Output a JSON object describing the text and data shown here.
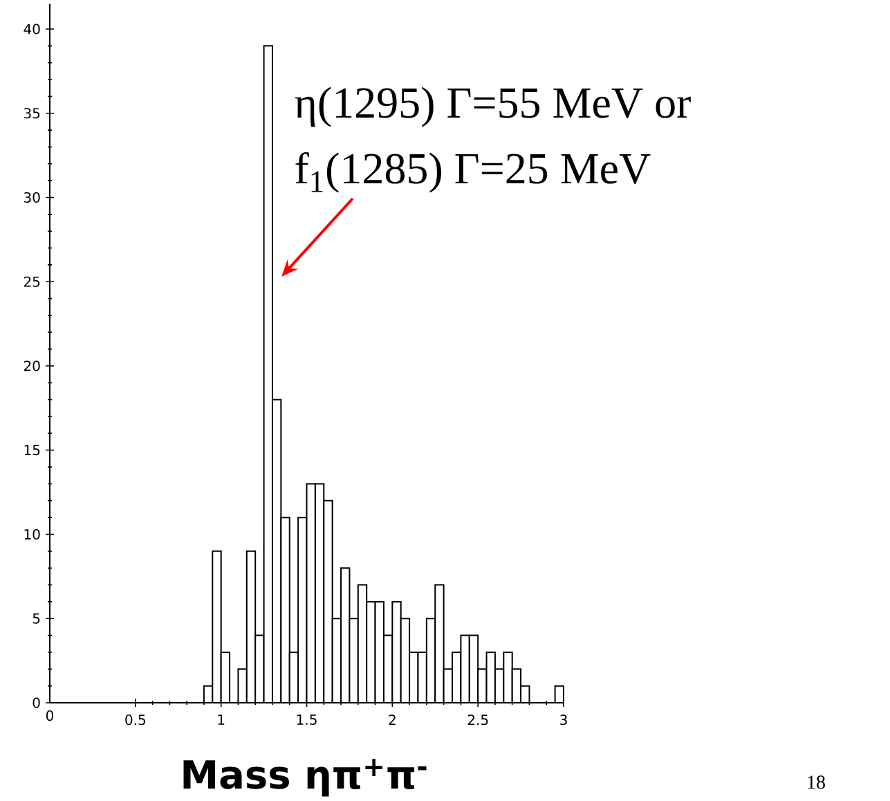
{
  "chart_data": {
    "type": "histogram",
    "bins": [
      0.9,
      0.95,
      1.0,
      1.05,
      1.1,
      1.15,
      1.2,
      1.25,
      1.3,
      1.35,
      1.4,
      1.45,
      1.5,
      1.55,
      1.6,
      1.65,
      1.7,
      1.75,
      1.8,
      1.85,
      1.9,
      1.95,
      2.0,
      2.05,
      2.1,
      2.15,
      2.2,
      2.25,
      2.3,
      2.35,
      2.4,
      2.45,
      2.5,
      2.55,
      2.6,
      2.65,
      2.7,
      2.75,
      2.8,
      2.85,
      2.9,
      2.95,
      3.0
    ],
    "values": [
      1,
      9,
      3,
      0,
      2,
      9,
      4,
      39,
      18,
      11,
      3,
      11,
      13,
      13,
      12,
      5,
      8,
      5,
      7,
      6,
      6,
      4,
      6,
      5,
      3,
      3,
      5,
      7,
      2,
      3,
      4,
      4,
      2,
      3,
      2,
      3,
      2,
      1,
      0,
      0,
      0,
      1
    ],
    "color": "#000000",
    "xlim": [
      0,
      3
    ],
    "ylim": [
      0,
      41.5
    ],
    "xticks": [
      0,
      0.5,
      1,
      1.5,
      2,
      2.5,
      3
    ],
    "yticks": [
      0,
      5,
      10,
      15,
      20,
      25,
      30,
      35,
      40
    ],
    "xlabel": "Mass ηπ$^{+}$π$^{-}$",
    "annotations": [
      "η(1295)  Γ=55 MeV   or",
      "f$_{1}$(1285) Γ=25 MeV",
      "18"
    ]
  }
}
